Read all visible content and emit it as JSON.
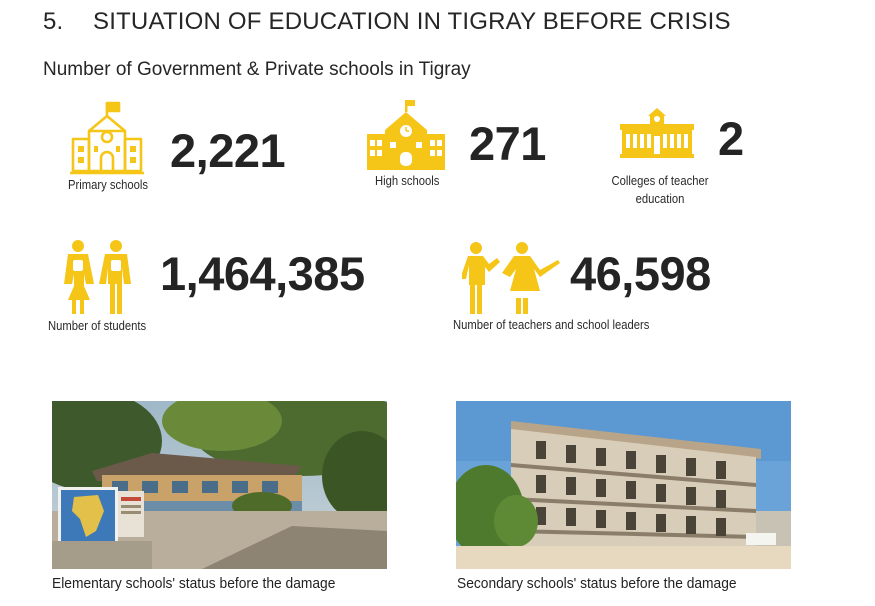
{
  "section": {
    "number": "5.",
    "title": "SITUATION OF EDUCATION IN TIGRAY BEFORE CRISIS",
    "subtitle": "Number of Government & Private schools in Tigray"
  },
  "stats": {
    "primary": {
      "value": "2,221",
      "label": "Primary schools",
      "icon": "primary-school-icon"
    },
    "high": {
      "value": "271",
      "label": "High schools",
      "icon": "high-school-icon"
    },
    "colleges": {
      "value": "2",
      "label_line1": "Colleges of teacher",
      "label_line2": "education",
      "icon": "college-icon"
    },
    "students": {
      "value": "1,464,385",
      "label": "Number of students",
      "icon": "students-icon"
    },
    "teachers": {
      "value": "46,598",
      "label": "Number of teachers and school leaders",
      "icon": "teachers-icon"
    }
  },
  "photos": {
    "elementary": {
      "caption": "Elementary schools' status before the damage"
    },
    "secondary": {
      "caption": "Secondary schools' status before the damage"
    }
  },
  "colors": {
    "accent": "#f5c518",
    "text": "#242424"
  }
}
